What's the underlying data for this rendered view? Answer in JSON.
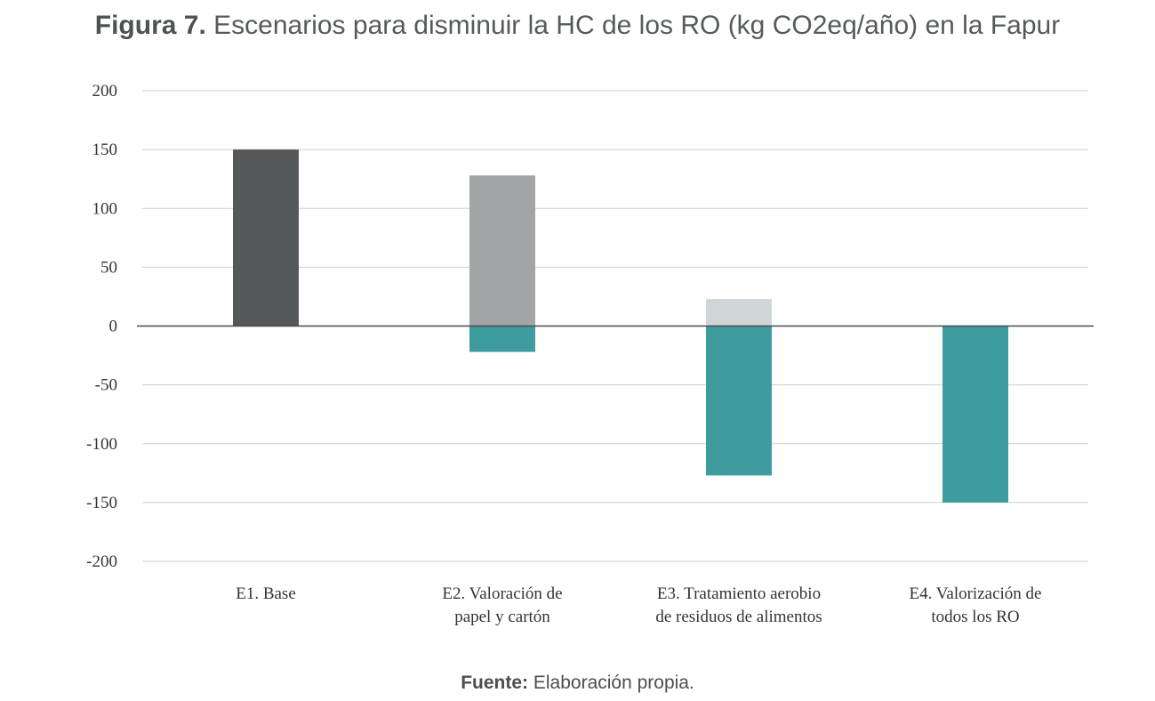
{
  "title": {
    "prefix": "Figura 7.",
    "text": "Escenarios para disminuir la HC de los RO (kg CO2eq/año) en la Fapur"
  },
  "source": {
    "label": "Fuente:",
    "text": "Elaboración propia."
  },
  "chart_data": {
    "type": "bar",
    "stacked": true,
    "categories": [
      [
        "E1. Base"
      ],
      [
        "E2. Valoración de",
        "papel y cartón"
      ],
      [
        "E3. Tratamiento aerobio",
        "de residuos de alimentos"
      ],
      [
        "E4. Valorización de",
        "todos los RO"
      ]
    ],
    "series": [
      {
        "color": "#545858",
        "values": [
          150,
          0,
          0,
          0
        ]
      },
      {
        "color": "#a2a4a5",
        "values": [
          0,
          128,
          0,
          0
        ]
      },
      {
        "color": "#d0d6d8",
        "values": [
          0,
          0,
          23,
          0
        ]
      },
      {
        "color": "#3e9c9f",
        "values": [
          0,
          -22,
          -127,
          -150
        ]
      }
    ],
    "ylim": [
      -200,
      200
    ],
    "yticks": [
      200,
      150,
      100,
      50,
      0,
      -50,
      -100,
      -150,
      -200
    ],
    "grid": true,
    "legend": "none"
  }
}
